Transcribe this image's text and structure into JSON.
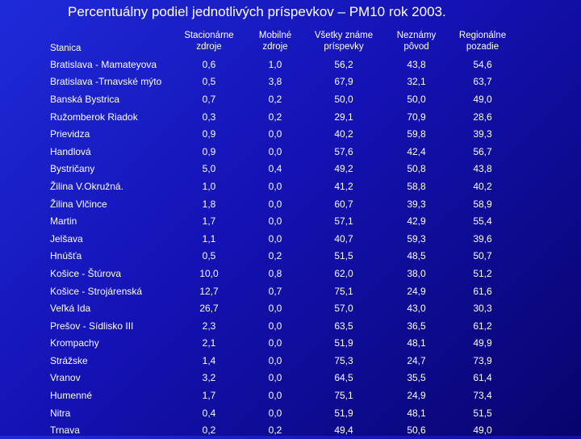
{
  "title": "Percentuálny podiel jednotlivých príspevkov – PM10 rok 2003.",
  "table": {
    "headers": [
      "Stanica",
      "Stacionárne zdroje",
      "Mobilné zdroje",
      "Všetky známe príspevky",
      "Neznámy pôvod",
      "Regionálne pozadie"
    ],
    "rows": [
      [
        "Bratislava - Mamateyova",
        "0,6",
        "1,0",
        "56,2",
        "43,8",
        "54,6"
      ],
      [
        "Bratislava -Trnavské mýto",
        "0,5",
        "3,8",
        "67,9",
        "32,1",
        "63,7"
      ],
      [
        "Banská Bystrica",
        "0,7",
        "0,2",
        "50,0",
        "50,0",
        "49,0"
      ],
      [
        "Ružomberok Riadok",
        "0,3",
        "0,2",
        "29,1",
        "70,9",
        "28,6"
      ],
      [
        "Prievidza",
        "0,9",
        "0,0",
        "40,2",
        "59,8",
        "39,3"
      ],
      [
        "Handlová",
        "0,9",
        "0,0",
        "57,6",
        "42,4",
        "56,7"
      ],
      [
        "Bystričany",
        "5,0",
        "0,4",
        "49,2",
        "50,8",
        "43,8"
      ],
      [
        "Žilina V.Okružná.",
        "1,0",
        "0,0",
        "41,2",
        "58,8",
        "40,2"
      ],
      [
        "Žilina Vlčince",
        "1,8",
        "0,0",
        "60,7",
        "39,3",
        "58,9"
      ],
      [
        "Martin",
        "1,7",
        "0,0",
        "57,1",
        "42,9",
        "55,4"
      ],
      [
        "Jelšava",
        "1,1",
        "0,0",
        "40,7",
        "59,3",
        "39,6"
      ],
      [
        "Hnúšťa",
        "0,5",
        "0,2",
        "51,5",
        "48,5",
        "50,7"
      ],
      [
        "Košice - Štúrova",
        "10,0",
        "0,8",
        "62,0",
        "38,0",
        "51,2"
      ],
      [
        "Košice - Strojárenská",
        "12,7",
        "0,7",
        "75,1",
        "24,9",
        "61,6"
      ],
      [
        "Veľká Ida",
        "26,7",
        "0,0",
        "57,0",
        "43,0",
        "30,3"
      ],
      [
        "Prešov - Sídlisko III",
        "2,3",
        "0,0",
        "63,5",
        "36,5",
        "61,2"
      ],
      [
        "Krompachy",
        "2,1",
        "0,0",
        "51,9",
        "48,1",
        "49,9"
      ],
      [
        "Strážske",
        "1,4",
        "0,0",
        "75,3",
        "24,7",
        "73,9"
      ],
      [
        "Vranov",
        "3,2",
        "0,0",
        "64,5",
        "35,5",
        "61,4"
      ],
      [
        "Humenné",
        "1,7",
        "0,0",
        "75,1",
        "24,9",
        "73,4"
      ],
      [
        "Nitra",
        "0,4",
        "0,0",
        "51,9",
        "48,1",
        "51,5"
      ],
      [
        "Trnava",
        "0,2",
        "0,2",
        "49,4",
        "50,6",
        "49,0"
      ]
    ]
  }
}
